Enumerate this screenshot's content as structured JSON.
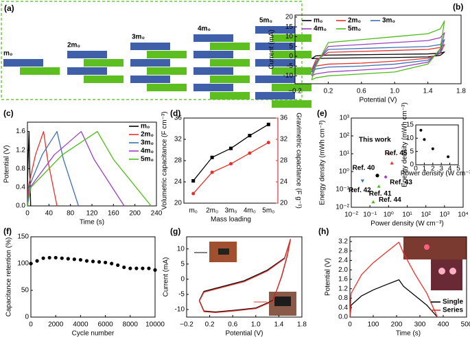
{
  "diagram": {
    "panel_label": "(a)",
    "labels": [
      "m₀",
      "2m₀",
      "3m₀",
      "4m₀",
      "5m₀"
    ]
  },
  "chart_data": [
    {
      "type": "line",
      "panel_label": "(b)",
      "xlabel": "Potential (V)",
      "ylabel": "Current (mA)",
      "xlim": [
        -0.2,
        1.8
      ],
      "xticks": [
        {
          "value": -0.2,
          "label": "−0.2"
        },
        0.2,
        0.6,
        {
          "value": 1.0,
          "label": "1.0"
        },
        1.4,
        1.8
      ],
      "ylim": [
        -14,
        21
      ],
      "yticks": [
        -10,
        -5,
        0,
        5,
        10,
        15,
        20
      ],
      "legend": "upper left",
      "series": [
        {
          "name": "m₀",
          "color": "#000000",
          "x": [
            0,
            0.05,
            0.2,
            0.6,
            1.0,
            1.4,
            1.55,
            1.6,
            1.55,
            1.4,
            1.0,
            0.6,
            0.2,
            0.05,
            0
          ],
          "values": [
            -1.2,
            0.2,
            0.6,
            0.8,
            1.0,
            1.2,
            1.6,
            2.2,
            0.5,
            -0.3,
            -0.6,
            -0.8,
            -1.0,
            -1.1,
            -1.2
          ]
        },
        {
          "name": "2m₀",
          "color": "#e8302a",
          "x": [
            0,
            0.05,
            0.2,
            0.6,
            1.0,
            1.4,
            1.55,
            1.6,
            1.55,
            1.4,
            1.0,
            0.6,
            0.2,
            0.05,
            0
          ],
          "values": [
            -7,
            -2,
            2,
            2.5,
            3,
            3.5,
            4.5,
            6,
            1.5,
            -1,
            -2.5,
            -3.5,
            -4,
            -5,
            -7
          ]
        },
        {
          "name": "3m₀",
          "color": "#3b6fb6",
          "x": [
            0,
            0.05,
            0.2,
            0.6,
            1.0,
            1.4,
            1.55,
            1.6,
            1.55,
            1.4,
            1.0,
            0.6,
            0.2,
            0.05,
            0
          ],
          "values": [
            -8,
            -3,
            3.5,
            4,
            4.5,
            5,
            6,
            8.5,
            2,
            -2,
            -4,
            -5,
            -5.5,
            -6.5,
            -8
          ]
        },
        {
          "name": "4m₀",
          "color": "#9b3fc0",
          "x": [
            0,
            0.05,
            0.2,
            0.6,
            1.0,
            1.4,
            1.55,
            1.6,
            1.55,
            1.4,
            1.0,
            0.6,
            0.2,
            0.05,
            0
          ],
          "values": [
            -10,
            -4,
            5,
            6,
            7,
            8,
            9.5,
            12,
            3,
            -3,
            -6,
            -7,
            -8,
            -9,
            -10
          ]
        },
        {
          "name": "5m₀",
          "color": "#4cbb17",
          "x": [
            0,
            0.05,
            0.2,
            0.6,
            1.0,
            1.4,
            1.55,
            1.6,
            1.55,
            1.4,
            1.0,
            0.6,
            0.2,
            0.05,
            0
          ],
          "values": [
            -12,
            -5,
            7,
            8.5,
            10,
            11.5,
            14,
            18,
            4,
            -4,
            -8,
            -9,
            -10,
            -11,
            -12
          ]
        }
      ]
    },
    {
      "type": "line",
      "panel_label": "(c)",
      "xlabel": "Time (s)",
      "ylabel": "Potential (V)",
      "xlim": [
        0,
        240
      ],
      "xticks": [
        0,
        40,
        80,
        120,
        160,
        200,
        240
      ],
      "ylim": [
        0,
        1.8
      ],
      "yticks": [
        {
          "value": 0,
          "label": "0.0"
        },
        0.4,
        0.8,
        1.2,
        1.6
      ],
      "legend": "upper right",
      "series": [
        {
          "name": "m₀",
          "color": "#000000",
          "x": [
            0,
            0.15,
            1.5,
            3,
            3.9,
            6
          ],
          "values": [
            0,
            0.4,
            1.1,
            1.6,
            1.0,
            0
          ]
        },
        {
          "name": "2m₀",
          "color": "#e8302a",
          "x": [
            0,
            1.5,
            15,
            30,
            37.5,
            55
          ],
          "values": [
            0,
            0.4,
            1.1,
            1.6,
            1.0,
            0
          ]
        },
        {
          "name": "3m₀",
          "color": "#3b6fb6",
          "x": [
            0,
            2.75,
            27.5,
            55,
            67,
            95
          ],
          "values": [
            0,
            0.4,
            1.1,
            1.6,
            1.0,
            0
          ]
        },
        {
          "name": "4m₀",
          "color": "#9b3fc0",
          "x": [
            0,
            5,
            50,
            100,
            124,
            180
          ],
          "values": [
            0,
            0.4,
            1.1,
            1.6,
            1.0,
            0
          ]
        },
        {
          "name": "5m₀",
          "color": "#4cbb17",
          "x": [
            0,
            6.5,
            65,
            130,
            160,
            230
          ],
          "values": [
            0,
            0.4,
            1.1,
            1.6,
            1.0,
            0
          ]
        }
      ]
    },
    {
      "type": "line",
      "panel_label": "(d)",
      "xlabel": "Mass loading",
      "ylabel": "Volumetric capacitance (F cm⁻³)",
      "y2label": "Gravimetric capacitance (F g⁻¹)",
      "y2color": "#e8302a",
      "categories": [
        "m₀",
        "2m₀",
        "3m₀",
        "4m₀",
        "5m₀"
      ],
      "ylim": [
        20,
        36
      ],
      "yticks": [
        20,
        24,
        28,
        32,
        36
      ],
      "y2lim": [
        20,
        36
      ],
      "y2ticks": [
        20,
        24,
        28,
        32,
        36
      ],
      "series": [
        {
          "color": "#000000",
          "marker": "square",
          "values": [
            24.2,
            28.6,
            30.3,
            32.7,
            34.8
          ]
        },
        {
          "color": "#e8302a",
          "marker": "circle",
          "axis": "y2",
          "values": [
            21.8,
            25.8,
            27.4,
            29.4,
            31.4
          ]
        }
      ]
    },
    {
      "type": "scatter",
      "panel_label": "(e)",
      "xlabel": "Power density (W cm⁻³)",
      "ylabel": "Energy density (mWh cm⁻³)",
      "xlog": true,
      "ylog": true,
      "xlim": [
        0.01,
        10000
      ],
      "ylim": [
        0.01,
        1000
      ],
      "point_labels": true,
      "xticks": [
        {
          "value": 0.01,
          "label": "10⁻²"
        },
        {
          "value": 0.1,
          "label": "10⁻¹"
        },
        {
          "value": 1,
          "label": "10⁰"
        },
        {
          "value": 10,
          "label": "10¹"
        },
        {
          "value": 100,
          "label": "10²"
        },
        {
          "value": 1000,
          "label": "10³"
        },
        {
          "value": 10000,
          "label": "10⁴"
        }
      ],
      "yticks": [
        {
          "value": 0.01,
          "label": "10⁻²"
        },
        {
          "value": 0.1,
          "label": "10⁻¹"
        },
        {
          "value": 1,
          "label": "10⁰"
        },
        {
          "value": 10,
          "label": "10¹"
        },
        {
          "value": 100,
          "label": "10²"
        },
        {
          "value": 1000,
          "label": "10³"
        }
      ],
      "series": [
        {
          "name": "This work",
          "color": "#e8302a",
          "marker": "star",
          "x": [
            1
          ],
          "values": [
            10
          ]
        },
        {
          "name": "Ref. 45",
          "color": "#e8302a",
          "marker": "triangle",
          "x": [
            1.5
          ],
          "values": [
            3
          ]
        },
        {
          "name": "Ref. 40",
          "color": "#000000",
          "marker": "circle",
          "x": [
            0.25
          ],
          "values": [
            0.6
          ]
        },
        {
          "name": "Ref. 42",
          "color": "#3b6fb6",
          "marker": "triangle-down",
          "x": [
            0.04
          ],
          "values": [
            0.3
          ]
        },
        {
          "name": "Ref. 43",
          "color": "#9b3fc0",
          "marker": "diamond",
          "x": [
            0.7
          ],
          "values": [
            0.5
          ]
        },
        {
          "name": "Ref. 41",
          "color": "#4cbb17",
          "marker": "triangle",
          "x": [
            0.3
          ],
          "values": [
            0.15
          ]
        },
        {
          "name": "Ref. 44",
          "color": "#4cbb17",
          "marker": "triangle",
          "x": [
            0.15
          ],
          "values": [
            0.02
          ]
        }
      ],
      "inset": {
        "type": "scatter",
        "xlabel": "Power density (W cm⁻³)",
        "ylabel": "Energy density (mWh cm⁻³)",
        "xlim": [
          0,
          5
        ],
        "xticks": [
          0,
          1,
          2,
          3,
          4,
          5
        ],
        "ylim": [
          0,
          15
        ],
        "yticks": [
          0,
          5,
          10,
          15
        ],
        "series": [
          {
            "color": "#000000",
            "marker": "circle",
            "x": [
              0.6,
              1,
              2,
              3.8
            ],
            "values": [
              13,
              9.5,
              6,
              3
            ]
          }
        ]
      }
    },
    {
      "type": "scatter",
      "panel_label": "(f)",
      "xlabel": "Cycle number",
      "ylabel": "Capacitance retention (%)",
      "xlim": [
        0,
        10000
      ],
      "xticks": [
        0,
        2000,
        4000,
        6000,
        8000,
        10000
      ],
      "ylim": [
        0,
        150
      ],
      "yticks": [
        0,
        50,
        100,
        150
      ],
      "series": [
        {
          "color": "#000000",
          "marker": "circle",
          "x": [
            0,
            500,
            1000,
            1500,
            2000,
            2500,
            3000,
            3500,
            4000,
            4500,
            5000,
            5500,
            6000,
            6500,
            7000,
            7500,
            8000,
            8500,
            9000,
            9500,
            10000
          ],
          "values": [
            100,
            105,
            110,
            111,
            111,
            110,
            109,
            108,
            107,
            105,
            104,
            103,
            102,
            100,
            97,
            93,
            91,
            91,
            91,
            91,
            88
          ]
        }
      ]
    },
    {
      "type": "line",
      "panel_label": "(g)",
      "xlabel": "Potential (V)",
      "ylabel": "Current (mA)",
      "xlim": [
        -0.2,
        1.8
      ],
      "xticks": [
        {
          "value": -0.2,
          "label": "−0.2"
        },
        0.2,
        0.6,
        {
          "value": 1.0,
          "label": "1.0"
        },
        1.4,
        1.8
      ],
      "ylim": [
        -12.5,
        14
      ],
      "yticks": [
        -10,
        -5,
        0,
        5,
        10
      ],
      "series": [
        {
          "color": "#000000",
          "x": [
            0.02,
            0.1,
            0.4,
            0.8,
            1.2,
            1.5,
            1.6,
            1.55,
            1.45,
            1.3,
            1.0,
            0.6,
            0.3,
            0.1,
            0.02
          ],
          "values": [
            -7,
            -4,
            -2.5,
            -0.5,
            3,
            7,
            13,
            8,
            1,
            -7,
            -9.5,
            -10.3,
            -10.8,
            -10.5,
            -7
          ]
        },
        {
          "color": "#e8302a",
          "x": [
            0.02,
            0.1,
            0.4,
            0.8,
            1.2,
            1.5,
            1.6,
            1.55,
            1.45,
            1.3,
            1.0,
            0.6,
            0.3,
            0.1,
            0.02
          ],
          "values": [
            -7.2,
            -4.3,
            -2.8,
            -0.8,
            2.7,
            6.8,
            13.2,
            8.2,
            1.2,
            -7.2,
            -9.7,
            -10.5,
            -11,
            -10.7,
            -7.2
          ]
        }
      ]
    },
    {
      "type": "line",
      "panel_label": "(h)",
      "xlabel": "Time (s)",
      "ylabel": "Potential (V)",
      "xlim": [
        0,
        500
      ],
      "xticks": [
        0,
        100,
        200,
        300,
        400,
        500
      ],
      "ylim": [
        0,
        3.4
      ],
      "yticks": [
        {
          "value": 0,
          "label": "0.0"
        },
        0.4,
        0.8,
        1.2,
        1.6,
        {
          "value": 2,
          "label": "2.0"
        },
        2.4,
        2.8,
        3.2
      ],
      "legend": "lower right",
      "series": [
        {
          "name": "Single",
          "color": "#000000",
          "x": [
            0,
            5,
            50,
            100,
            150,
            210,
            230,
            280,
            330,
            375
          ],
          "values": [
            0,
            0.5,
            0.9,
            1.15,
            1.35,
            1.58,
            1.3,
            0.9,
            0.5,
            0
          ]
        },
        {
          "name": "Series",
          "color": "#e8302a",
          "x": [
            0,
            5,
            50,
            100,
            150,
            210,
            230,
            280,
            330,
            375
          ],
          "values": [
            0,
            1,
            1.8,
            2.3,
            2.7,
            3.17,
            2.7,
            1.8,
            1.0,
            0
          ]
        }
      ]
    }
  ]
}
